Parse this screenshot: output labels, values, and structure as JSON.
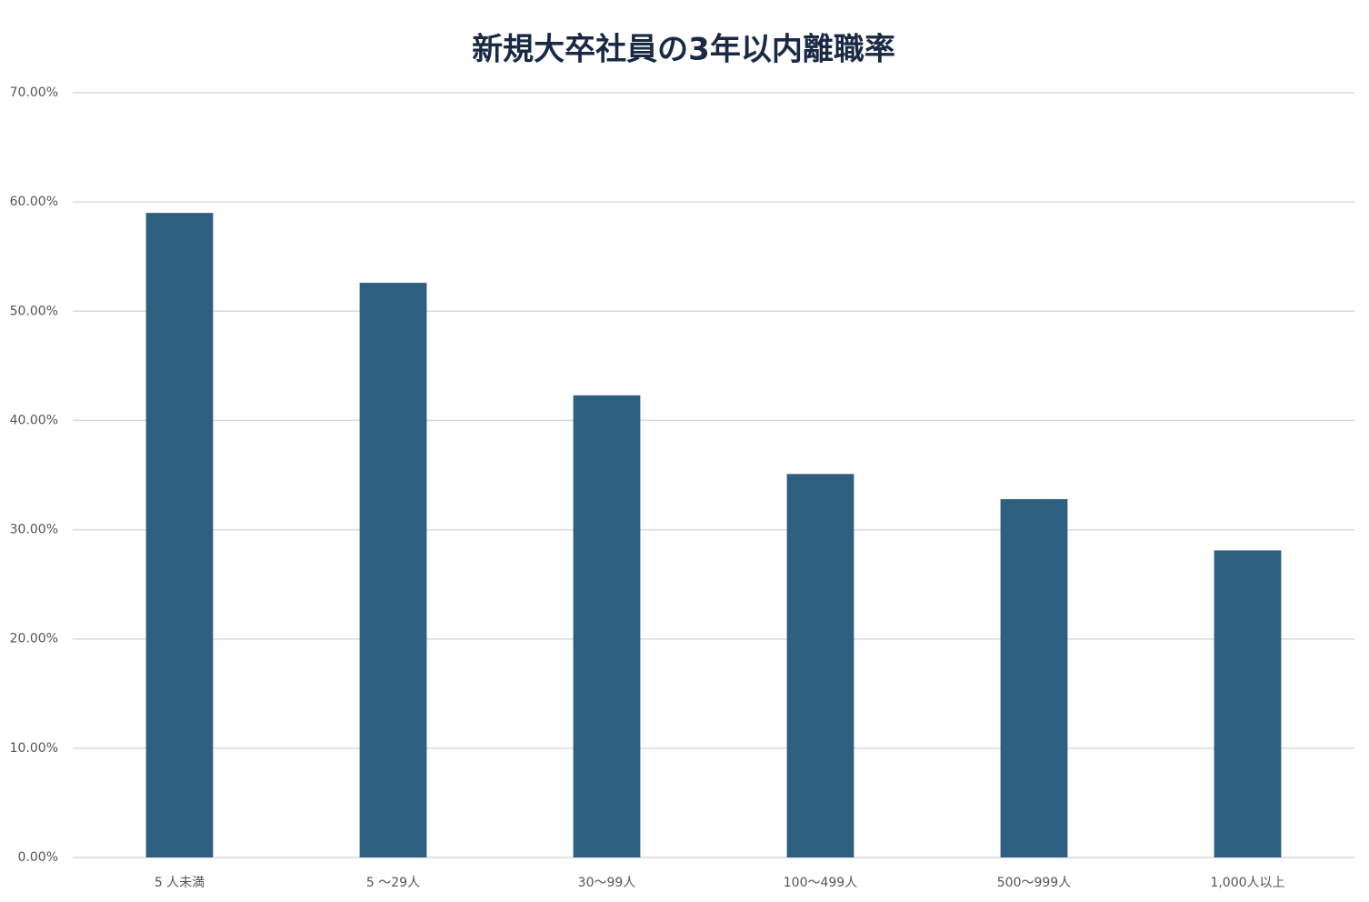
{
  "chart_data": {
    "type": "bar",
    "title": "新規大卒社員の3年以内離職率",
    "categories": [
      "5 人未満",
      "5 〜29人",
      "30〜99人",
      "100〜499人",
      "500〜999人",
      "1,000人以上"
    ],
    "values": [
      59.0,
      52.6,
      42.3,
      35.1,
      32.8,
      28.1
    ],
    "color": "#2e5f7e",
    "ylim": [
      0,
      70
    ],
    "yticks": [
      {
        "value": 0,
        "label": "0.00%"
      },
      {
        "value": 10,
        "label": "10.00%"
      },
      {
        "value": 20,
        "label": "20.00%"
      },
      {
        "value": 30,
        "label": "30.00%"
      },
      {
        "value": 40,
        "label": "40.00%"
      },
      {
        "value": 50,
        "label": "50.00%"
      },
      {
        "value": 60,
        "label": "60.00%"
      },
      {
        "value": 70,
        "label": "70.00%"
      }
    ],
    "grid": true
  }
}
